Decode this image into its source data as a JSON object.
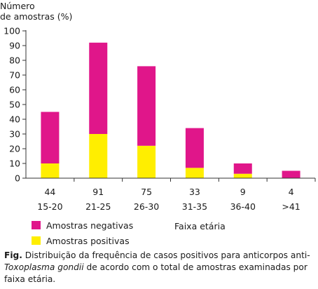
{
  "chart_data": {
    "type": "bar",
    "stacked": true,
    "ylabel": "Número de amostras (%)",
    "ylabel_lines": [
      "Número",
      "de amostras (%)"
    ],
    "xlabel": "Faixa etária",
    "ylim": [
      0,
      100
    ],
    "yticks": [
      0,
      10,
      20,
      30,
      40,
      50,
      60,
      70,
      80,
      90,
      100
    ],
    "categories": [
      "15-20",
      "21-25",
      "26-30",
      "31-35",
      "36-40",
      ">41"
    ],
    "totals": [
      "44",
      "91",
      "75",
      "33",
      "9",
      "4"
    ],
    "grid": false,
    "series": [
      {
        "name": "Amostras positivas",
        "color": "#ffee00",
        "values": [
          10,
          30,
          22,
          7,
          3,
          0
        ]
      },
      {
        "name": "Amostras negativas",
        "color": "#e0168a",
        "values": [
          35,
          62,
          54,
          27,
          7,
          5
        ]
      }
    ],
    "legend": [
      {
        "label": "Amostras negativas",
        "color": "#e0168a"
      },
      {
        "label": "Amostras positivas",
        "color": "#ffee00"
      }
    ],
    "legend_position": "bottom-left"
  },
  "caption": {
    "fig_label": "Fig.",
    "text_1": " Distribuição da frequência de casos positivos para anticorpos anti-",
    "italic": "Toxoplasma gondii",
    "text_2": " de acordo com o total de amostras examinadas por faixa etária."
  }
}
